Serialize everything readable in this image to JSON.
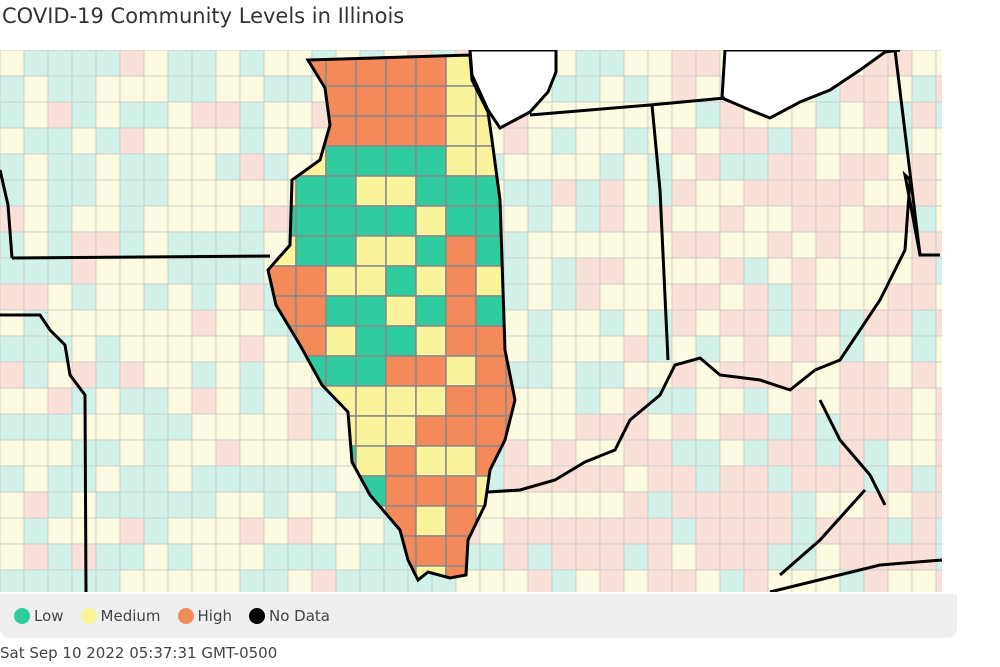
{
  "title": "COVID-19 Community Levels in Illinois",
  "legend": [
    {
      "label": "Low",
      "color": "#2ecc9f"
    },
    {
      "label": "Medium",
      "color": "#f9f39b"
    },
    {
      "label": "High",
      "color": "#f4895a"
    },
    {
      "label": "No Data",
      "color": "#000000"
    }
  ],
  "faded_colors": {
    "low": "#d2f1e9",
    "medium": "#fcfbe1",
    "high": "#f9e1da"
  },
  "timestamp": "Sat Sep 10 2022 05:37:31 GMT-0500"
}
